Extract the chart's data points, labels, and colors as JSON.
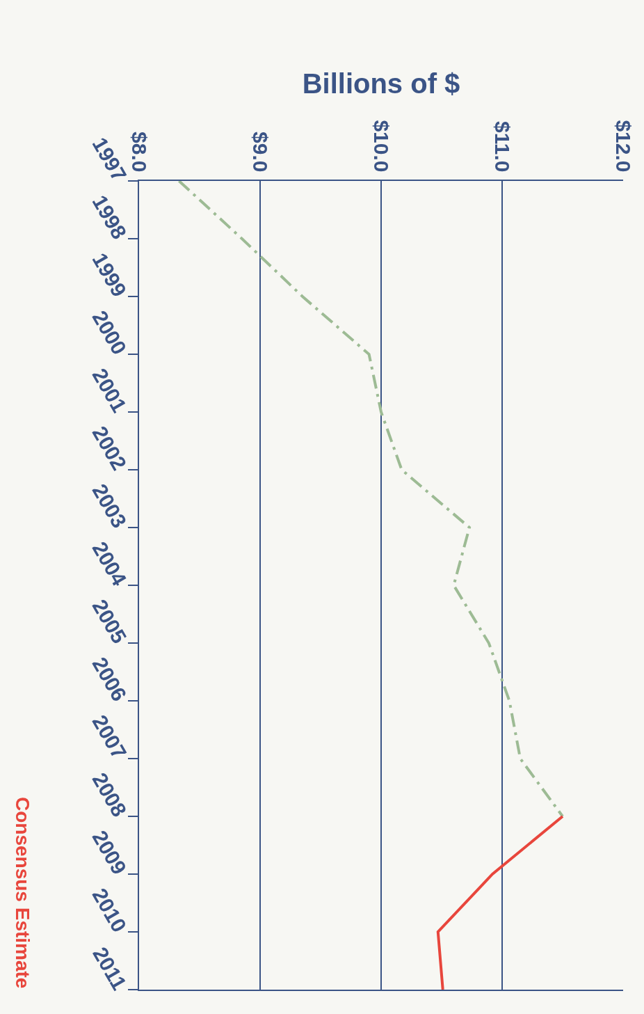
{
  "chart_data": {
    "type": "line",
    "orientation": "horizontal",
    "xlabel": "Billions of $",
    "categories": [
      "1997",
      "1998",
      "1999",
      "2000",
      "2001",
      "2002",
      "2003",
      "2004",
      "2005",
      "2006",
      "2007",
      "2008",
      "2009",
      "2010",
      "2011"
    ],
    "series": [
      {
        "color": "#9dbb94",
        "line_style": "dashed",
        "values": [
          8.33,
          8.85,
          9.35,
          9.9,
          10.0,
          10.17,
          10.73,
          10.6,
          10.89,
          11.06,
          11.15,
          11.5,
          null,
          null,
          null
        ]
      },
      {
        "name": "Consensus Estimate",
        "color": "#e8463c",
        "line_style": "solid",
        "values": [
          null,
          null,
          null,
          null,
          null,
          null,
          null,
          null,
          null,
          null,
          null,
          11.5,
          10.92,
          10.47,
          10.51
        ]
      }
    ],
    "xlim": [
      8,
      12
    ],
    "xticks": [
      {
        "value": 8,
        "label": "$8.0"
      },
      {
        "value": 9,
        "label": "$9.0"
      },
      {
        "value": 10,
        "label": "$10.0"
      },
      {
        "value": 11,
        "label": "$11.0"
      },
      {
        "value": 12,
        "label": "$12.0"
      }
    ],
    "grid": "x",
    "legend": false
  }
}
